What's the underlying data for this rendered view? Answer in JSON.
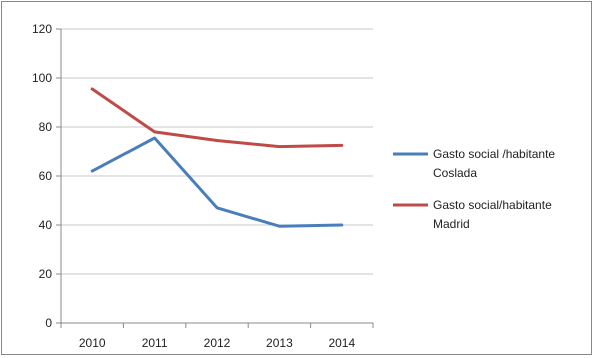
{
  "chart_data": {
    "type": "line",
    "title": "",
    "xlabel": "",
    "ylabel": "",
    "categories": [
      "2010",
      "2011",
      "2012",
      "2013",
      "2014"
    ],
    "ylim": [
      0,
      120
    ],
    "yticks": [
      0,
      20,
      40,
      60,
      80,
      100,
      120
    ],
    "grid": true,
    "legend_position": "right",
    "series": [
      {
        "name_lines": [
          "Gasto social /habitante",
          "Coslada"
        ],
        "color": "#4a7ebb",
        "values": [
          62,
          75.5,
          47,
          39.5,
          40
        ]
      },
      {
        "name_lines": [
          "Gasto social/habitante",
          "Madrid"
        ],
        "color": "#be4b48",
        "values": [
          95.5,
          78,
          74.5,
          72,
          72.5
        ]
      }
    ]
  }
}
